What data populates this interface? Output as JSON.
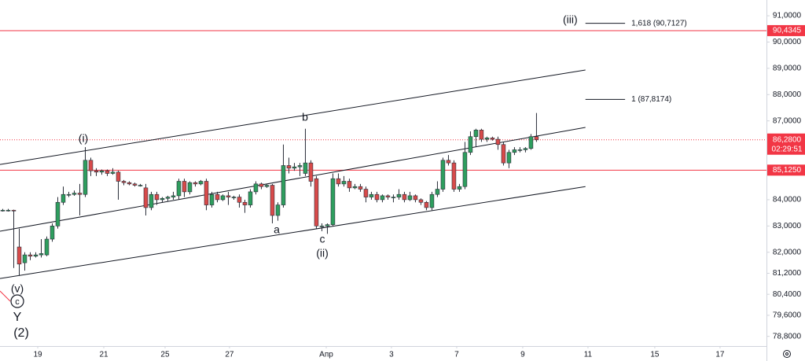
{
  "chart_data": {
    "type": "candlestick",
    "up_color": "#2e9e5e",
    "down_color": "#d84a4a",
    "xlim": [
      0,
      139.3
    ],
    "ylim": [
      78430,
      91600
    ],
    "xticks": [
      {
        "value": 6.86,
        "label": "19"
      },
      {
        "value": 18.86,
        "label": "21"
      },
      {
        "value": 30,
        "label": "25"
      },
      {
        "value": 41.71,
        "label": "27"
      },
      {
        "value": 59.29,
        "label": "Апр"
      },
      {
        "value": 71.14,
        "label": "3"
      },
      {
        "value": 83,
        "label": "7"
      },
      {
        "value": 95,
        "label": "9"
      },
      {
        "value": 106.86,
        "label": "11"
      },
      {
        "value": 119,
        "label": "15"
      },
      {
        "value": 130.86,
        "label": "17"
      }
    ],
    "yticks": [
      {
        "value": 91000,
        "label": "91,0000"
      },
      {
        "value": 90000,
        "label": "90,0000"
      },
      {
        "value": 89000,
        "label": "89,0000"
      },
      {
        "value": 88000,
        "label": "88,0000"
      },
      {
        "value": 87000,
        "label": "87,0000"
      },
      {
        "value": 84000,
        "label": "84,0000"
      },
      {
        "value": 83000,
        "label": "83,0000"
      },
      {
        "value": 82000,
        "label": "82,0000"
      },
      {
        "value": 81200,
        "label": "81,2000"
      },
      {
        "value": 80400,
        "label": "80,4000"
      },
      {
        "value": 79600,
        "label": "79,6000"
      },
      {
        "value": 78800,
        "label": "78,8000"
      }
    ],
    "levels": [
      {
        "value": 90434.5,
        "label": "90,4345",
        "color": "#f23645"
      },
      {
        "value": 85125,
        "label": "85,1250",
        "color": "#f23645"
      }
    ],
    "current": {
      "value": 86280,
      "label": "86,2800",
      "timer": "02:29:51",
      "color": "#f23645"
    },
    "fib": [
      {
        "value": 90712.7,
        "label": "1,618 (90,7127)"
      },
      {
        "value": 87817.4,
        "label": "1 (87,8174)"
      }
    ],
    "fib_x": [
      106.4,
      113.6
    ],
    "channel": [
      {
        "x": [
          0,
          106.4
        ],
        "y": [
          85340,
          88935
        ]
      },
      {
        "x": [
          0,
          106.4
        ],
        "y": [
          82800,
          86750
        ]
      },
      {
        "x": [
          0,
          106.4
        ],
        "y": [
          81000,
          84500
        ]
      }
    ],
    "annotations": [
      "(iii)",
      "(i)",
      "b",
      "a",
      "c",
      "(ii)",
      "(v)",
      "c",
      "Y",
      "(2)"
    ],
    "candles": [
      {
        "x": 0.5,
        "o": 83600,
        "h": 83650,
        "l": 83550,
        "c": 83600
      },
      {
        "x": 1.5,
        "o": 83600,
        "h": 83650,
        "l": 83550,
        "c": 83600
      },
      {
        "x": 2.5,
        "o": 83600,
        "h": 83620,
        "l": 81400,
        "c": 83580
      },
      {
        "x": 3.5,
        "o": 82200,
        "h": 82900,
        "l": 81100,
        "c": 81550
      },
      {
        "x": 4.5,
        "o": 81600,
        "h": 82000,
        "l": 81300,
        "c": 81900
      },
      {
        "x": 5.5,
        "o": 81900,
        "h": 82000,
        "l": 81700,
        "c": 81850
      },
      {
        "x": 6.5,
        "o": 81850,
        "h": 82000,
        "l": 81800,
        "c": 81900
      },
      {
        "x": 7.5,
        "o": 81900,
        "h": 82500,
        "l": 81800,
        "c": 81950
      },
      {
        "x": 8.5,
        "o": 81900,
        "h": 82600,
        "l": 81850,
        "c": 82500
      },
      {
        "x": 9.5,
        "o": 82500,
        "h": 83100,
        "l": 82400,
        "c": 83000
      },
      {
        "x": 10.5,
        "o": 83000,
        "h": 84100,
        "l": 82900,
        "c": 83900
      },
      {
        "x": 11.5,
        "o": 83900,
        "h": 84500,
        "l": 83800,
        "c": 84200
      },
      {
        "x": 12.5,
        "o": 84200,
        "h": 84300,
        "l": 84100,
        "c": 84200
      },
      {
        "x": 13.5,
        "o": 84200,
        "h": 84350,
        "l": 84150,
        "c": 84250
      },
      {
        "x": 14.5,
        "o": 84250,
        "h": 84600,
        "l": 83400,
        "c": 84200
      },
      {
        "x": 15.5,
        "o": 84200,
        "h": 86000,
        "l": 84100,
        "c": 85500
      },
      {
        "x": 16.5,
        "o": 85500,
        "h": 85600,
        "l": 84900,
        "c": 85100
      },
      {
        "x": 17.5,
        "o": 85100,
        "h": 85200,
        "l": 84900,
        "c": 85050
      },
      {
        "x": 18.5,
        "o": 85050,
        "h": 85150,
        "l": 84950,
        "c": 85100
      },
      {
        "x": 19.5,
        "o": 85100,
        "h": 85150,
        "l": 84900,
        "c": 85000
      },
      {
        "x": 20.5,
        "o": 85000,
        "h": 85200,
        "l": 84950,
        "c": 85050
      },
      {
        "x": 21.5,
        "o": 85050,
        "h": 85100,
        "l": 84000,
        "c": 84700
      },
      {
        "x": 22.5,
        "o": 84700,
        "h": 84750,
        "l": 84550,
        "c": 84650
      },
      {
        "x": 23.5,
        "o": 84650,
        "h": 84700,
        "l": 84550,
        "c": 84600
      },
      {
        "x": 24.5,
        "o": 84600,
        "h": 84650,
        "l": 84500,
        "c": 84550
      },
      {
        "x": 25.5,
        "o": 84550,
        "h": 84600,
        "l": 84500,
        "c": 84550
      },
      {
        "x": 26.5,
        "o": 84450,
        "h": 84600,
        "l": 83400,
        "c": 83700
      },
      {
        "x": 27.5,
        "o": 83700,
        "h": 84300,
        "l": 83600,
        "c": 84200
      },
      {
        "x": 28.5,
        "o": 84200,
        "h": 84300,
        "l": 83800,
        "c": 84000
      },
      {
        "x": 29.5,
        "o": 84000,
        "h": 84100,
        "l": 83900,
        "c": 84050
      },
      {
        "x": 30.5,
        "o": 84050,
        "h": 84150,
        "l": 83950,
        "c": 84100
      },
      {
        "x": 31.5,
        "o": 84100,
        "h": 84300,
        "l": 84000,
        "c": 84150
      },
      {
        "x": 32.5,
        "o": 84150,
        "h": 84800,
        "l": 84000,
        "c": 84700
      },
      {
        "x": 33.5,
        "o": 84700,
        "h": 84800,
        "l": 84100,
        "c": 84300
      },
      {
        "x": 34.5,
        "o": 84300,
        "h": 84700,
        "l": 84200,
        "c": 84650
      },
      {
        "x": 35.5,
        "o": 84650,
        "h": 84700,
        "l": 84500,
        "c": 84600
      },
      {
        "x": 36.5,
        "o": 84600,
        "h": 84750,
        "l": 84550,
        "c": 84700
      },
      {
        "x": 37.5,
        "o": 84700,
        "h": 84800,
        "l": 83600,
        "c": 83800
      },
      {
        "x": 38.5,
        "o": 83800,
        "h": 84300,
        "l": 83700,
        "c": 84200
      },
      {
        "x": 39.5,
        "o": 84200,
        "h": 84300,
        "l": 83900,
        "c": 84000
      },
      {
        "x": 40.5,
        "o": 84000,
        "h": 84200,
        "l": 83950,
        "c": 84150
      },
      {
        "x": 41.5,
        "o": 84150,
        "h": 84300,
        "l": 83800,
        "c": 84100
      },
      {
        "x": 42.5,
        "o": 84100,
        "h": 84150,
        "l": 84000,
        "c": 84100
      },
      {
        "x": 43.5,
        "o": 84100,
        "h": 84200,
        "l": 83700,
        "c": 83900
      },
      {
        "x": 44.5,
        "o": 83900,
        "h": 84000,
        "l": 83500,
        "c": 83800
      },
      {
        "x": 45.5,
        "o": 83800,
        "h": 84400,
        "l": 83700,
        "c": 84300
      },
      {
        "x": 46.5,
        "o": 84300,
        "h": 84700,
        "l": 84200,
        "c": 84600
      },
      {
        "x": 47.5,
        "o": 84600,
        "h": 84650,
        "l": 84400,
        "c": 84500
      },
      {
        "x": 48.5,
        "o": 84500,
        "h": 84600,
        "l": 84450,
        "c": 84550
      },
      {
        "x": 49.5,
        "o": 84550,
        "h": 84600,
        "l": 83100,
        "c": 83400
      },
      {
        "x": 50.5,
        "o": 83400,
        "h": 83900,
        "l": 83200,
        "c": 83800
      },
      {
        "x": 51.5,
        "o": 83800,
        "h": 86100,
        "l": 83700,
        "c": 85300
      },
      {
        "x": 52.5,
        "o": 85300,
        "h": 85600,
        "l": 85000,
        "c": 85200
      },
      {
        "x": 53.5,
        "o": 85200,
        "h": 85400,
        "l": 85100,
        "c": 85250
      },
      {
        "x": 54.5,
        "o": 85250,
        "h": 85400,
        "l": 84900,
        "c": 85300
      },
      {
        "x": 55.5,
        "o": 85000,
        "h": 86700,
        "l": 84900,
        "c": 85400
      },
      {
        "x": 56.5,
        "o": 85400,
        "h": 85500,
        "l": 84500,
        "c": 84700
      },
      {
        "x": 57.5,
        "o": 84800,
        "h": 84900,
        "l": 82900,
        "c": 83000
      },
      {
        "x": 58.5,
        "o": 83000,
        "h": 83100,
        "l": 82800,
        "c": 83000
      },
      {
        "x": 59.5,
        "o": 83000,
        "h": 83100,
        "l": 82700,
        "c": 83050
      },
      {
        "x": 60.5,
        "o": 83050,
        "h": 85000,
        "l": 83000,
        "c": 84800
      },
      {
        "x": 61.5,
        "o": 84800,
        "h": 85000,
        "l": 84500,
        "c": 84600
      },
      {
        "x": 62.5,
        "o": 84600,
        "h": 84900,
        "l": 84500,
        "c": 84700
      },
      {
        "x": 63.5,
        "o": 84700,
        "h": 84800,
        "l": 84300,
        "c": 84450
      },
      {
        "x": 64.5,
        "o": 84450,
        "h": 84600,
        "l": 84400,
        "c": 84500
      },
      {
        "x": 65.5,
        "o": 84500,
        "h": 84600,
        "l": 84300,
        "c": 84400
      },
      {
        "x": 66.5,
        "o": 84400,
        "h": 84500,
        "l": 83900,
        "c": 84100
      },
      {
        "x": 67.5,
        "o": 84100,
        "h": 84300,
        "l": 84000,
        "c": 84200
      },
      {
        "x": 68.5,
        "o": 84200,
        "h": 84300,
        "l": 83900,
        "c": 84000
      },
      {
        "x": 69.5,
        "o": 84000,
        "h": 84200,
        "l": 83900,
        "c": 84150
      },
      {
        "x": 70.5,
        "o": 84150,
        "h": 84200,
        "l": 84000,
        "c": 84100
      },
      {
        "x": 71.5,
        "o": 84100,
        "h": 84200,
        "l": 83900,
        "c": 84100
      },
      {
        "x": 72.5,
        "o": 84100,
        "h": 84400,
        "l": 84000,
        "c": 84200
      },
      {
        "x": 73.5,
        "o": 84200,
        "h": 84300,
        "l": 83900,
        "c": 84000
      },
      {
        "x": 74.5,
        "o": 84000,
        "h": 84300,
        "l": 83950,
        "c": 84150
      },
      {
        "x": 75.5,
        "o": 84150,
        "h": 84200,
        "l": 83900,
        "c": 84000
      },
      {
        "x": 76.5,
        "o": 84000,
        "h": 84050,
        "l": 83800,
        "c": 83900
      },
      {
        "x": 77.5,
        "o": 83900,
        "h": 83950,
        "l": 83600,
        "c": 83700
      },
      {
        "x": 78.5,
        "o": 83700,
        "h": 84300,
        "l": 83600,
        "c": 84200
      },
      {
        "x": 79.5,
        "o": 84200,
        "h": 84700,
        "l": 84100,
        "c": 84400
      },
      {
        "x": 80.5,
        "o": 84400,
        "h": 85600,
        "l": 84300,
        "c": 85500
      },
      {
        "x": 81.5,
        "o": 85500,
        "h": 85700,
        "l": 85300,
        "c": 85400
      },
      {
        "x": 82.5,
        "o": 85400,
        "h": 85500,
        "l": 84300,
        "c": 84400
      },
      {
        "x": 83.5,
        "o": 84400,
        "h": 84600,
        "l": 84300,
        "c": 84500
      },
      {
        "x": 84.5,
        "o": 84500,
        "h": 86200,
        "l": 84400,
        "c": 85800
      },
      {
        "x": 85.5,
        "o": 85800,
        "h": 86600,
        "l": 85700,
        "c": 86400
      },
      {
        "x": 86.5,
        "o": 86400,
        "h": 86700,
        "l": 86000,
        "c": 86650
      },
      {
        "x": 87.5,
        "o": 86650,
        "h": 86700,
        "l": 86200,
        "c": 86300
      },
      {
        "x": 88.5,
        "o": 86300,
        "h": 86400,
        "l": 86200,
        "c": 86350
      },
      {
        "x": 89.5,
        "o": 86350,
        "h": 86400,
        "l": 86250,
        "c": 86300
      },
      {
        "x": 90.5,
        "o": 86300,
        "h": 86400,
        "l": 85900,
        "c": 86100
      },
      {
        "x": 91.5,
        "o": 86100,
        "h": 86200,
        "l": 85300,
        "c": 85400
      },
      {
        "x": 92.5,
        "o": 85400,
        "h": 85900,
        "l": 85200,
        "c": 85800
      },
      {
        "x": 93.5,
        "o": 85800,
        "h": 86000,
        "l": 85700,
        "c": 85900
      },
      {
        "x": 94.5,
        "o": 85900,
        "h": 86000,
        "l": 85800,
        "c": 85900
      },
      {
        "x": 95.5,
        "o": 85900,
        "h": 86000,
        "l": 85800,
        "c": 85950
      },
      {
        "x": 96.5,
        "o": 85950,
        "h": 86500,
        "l": 85900,
        "c": 86400
      },
      {
        "x": 97.5,
        "o": 86400,
        "h": 87300,
        "l": 86200,
        "c": 86280
      }
    ]
  }
}
